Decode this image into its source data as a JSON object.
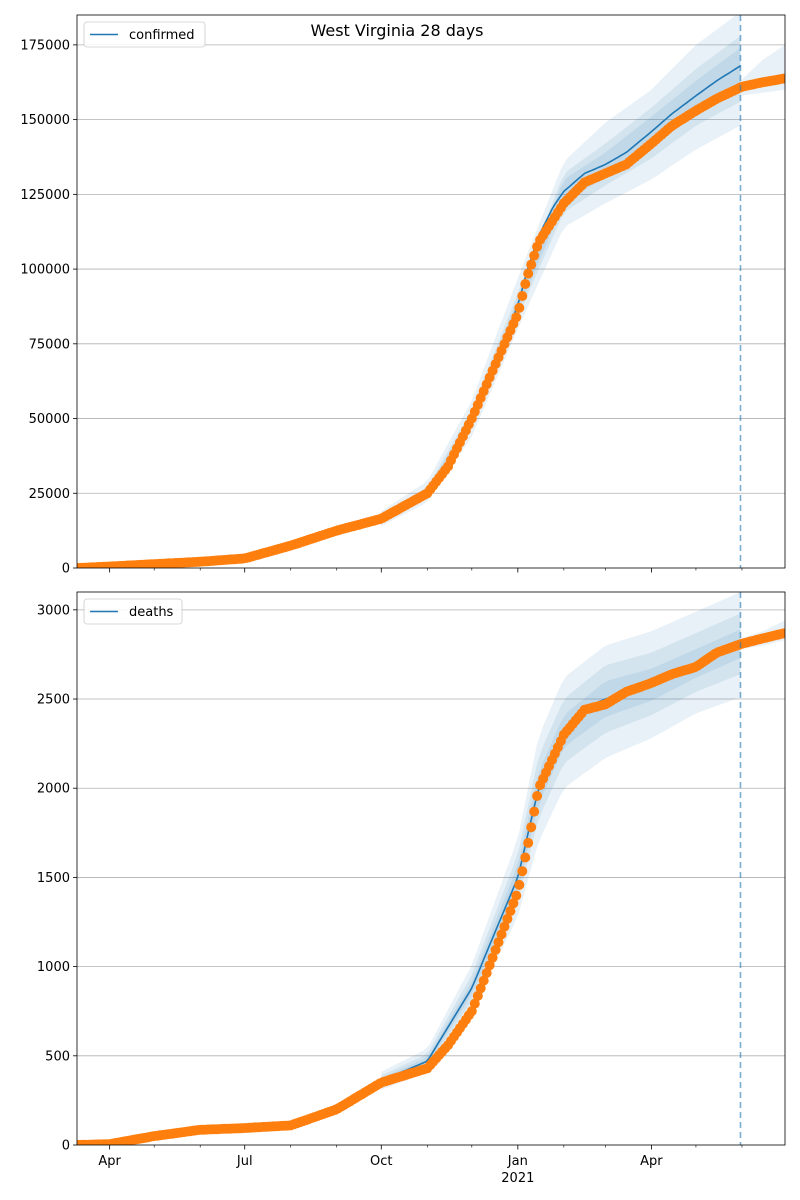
{
  "chart_data": [
    {
      "type": "line",
      "title": "West Virginia 28 days",
      "xlabel": "",
      "ylabel": "",
      "x_range": [
        "2020-03-10",
        "2021-06-30"
      ],
      "x_ticks": [
        {
          "date": "2020-04-01",
          "label": "Apr"
        },
        {
          "date": "2020-07-01",
          "label": "Jul"
        },
        {
          "date": "2020-10-01",
          "label": "Oct"
        },
        {
          "date": "2021-01-01",
          "label": "Jan",
          "sublabel": "2021"
        },
        {
          "date": "2021-04-01",
          "label": "Apr"
        }
      ],
      "ylim": [
        0,
        185000
      ],
      "y_ticks": [
        0,
        25000,
        50000,
        75000,
        100000,
        125000,
        150000,
        175000
      ],
      "y_tick_labels": [
        "0",
        "25000",
        "50000",
        "75000",
        "100000",
        "125000",
        "150000",
        "175000"
      ],
      "grid": "horizontal",
      "legend": {
        "position": "top-left",
        "entries": [
          "confirmed"
        ]
      },
      "forecast_start": "2021-05-31",
      "series": [
        {
          "name": "confirmed",
          "role": "model",
          "color": "#1f77b4",
          "x": [
            "2020-10-01",
            "2020-11-01",
            "2020-11-15",
            "2020-12-01",
            "2020-12-15",
            "2021-01-01",
            "2021-01-07",
            "2021-01-15",
            "2021-01-25",
            "2021-02-01",
            "2021-02-15",
            "2021-03-01",
            "2021-03-15",
            "2021-04-01",
            "2021-04-15",
            "2021-05-01",
            "2021-05-15",
            "2021-05-31"
          ],
          "values": [
            16000,
            25000,
            34000,
            50000,
            66000,
            88000,
            99000,
            111000,
            121000,
            126000,
            132000,
            135000,
            139000,
            146000,
            152000,
            158000,
            163000,
            168000
          ]
        },
        {
          "name": "",
          "role": "observed",
          "color": "#ff7f0e",
          "x": [
            "2020-03-10",
            "2020-04-01",
            "2020-05-01",
            "2020-06-01",
            "2020-07-01",
            "2020-08-01",
            "2020-09-01",
            "2020-10-01",
            "2020-11-01",
            "2020-11-15",
            "2020-12-01",
            "2020-12-15",
            "2021-01-01",
            "2021-01-07",
            "2021-01-15",
            "2021-02-01",
            "2021-02-15",
            "2021-03-01",
            "2021-03-15",
            "2021-04-01",
            "2021-04-15",
            "2021-05-01",
            "2021-05-15",
            "2021-06-01",
            "2021-06-15",
            "2021-06-30"
          ],
          "values": [
            0,
            500,
            1300,
            2100,
            3200,
            7500,
            12500,
            16500,
            25000,
            34000,
            50000,
            66000,
            85000,
            97000,
            109000,
            122000,
            129000,
            132000,
            135000,
            142000,
            148000,
            153000,
            157000,
            161000,
            162500,
            163800
          ]
        }
      ],
      "bands": [
        {
          "x": [
            "2020-10-01",
            "2020-11-01",
            "2020-12-01",
            "2021-01-01",
            "2021-02-01",
            "2021-03-01",
            "2021-04-01",
            "2021-05-01",
            "2021-05-31"
          ],
          "lower": [
            14000,
            22000,
            44000,
            80000,
            114000,
            122000,
            130000,
            140000,
            148000
          ],
          "upper": [
            19000,
            29000,
            56000,
            97000,
            136000,
            149000,
            160000,
            175000,
            186000
          ]
        },
        {
          "x": [
            "2020-10-01",
            "2020-11-01",
            "2020-12-01",
            "2021-01-01",
            "2021-02-01",
            "2021-03-01",
            "2021-04-01",
            "2021-05-01",
            "2021-05-31"
          ],
          "lower": [
            15000,
            23500,
            47000,
            84000,
            119000,
            128000,
            137000,
            148000,
            156000
          ],
          "upper": [
            17500,
            27000,
            53000,
            92000,
            132000,
            142000,
            154000,
            167000,
            178000
          ]
        },
        {
          "x": [
            "2020-10-01",
            "2020-11-01",
            "2020-12-01",
            "2021-01-01",
            "2021-02-01",
            "2021-03-01",
            "2021-04-01",
            "2021-05-01",
            "2021-05-31"
          ],
          "lower": [
            15500,
            24200,
            48500,
            86000,
            122000,
            131000,
            141000,
            152000,
            161000
          ],
          "upper": [
            16800,
            26000,
            51500,
            90000,
            130000,
            139000,
            151000,
            163000,
            174000
          ]
        },
        {
          "x": [
            "2021-05-31",
            "2021-06-15",
            "2021-06-30"
          ],
          "lower": [
            158000,
            159000,
            160000
          ],
          "upper": [
            163000,
            170000,
            175000
          ]
        }
      ]
    },
    {
      "type": "line",
      "title": "",
      "xlabel": "",
      "ylabel": "",
      "x_range": [
        "2020-03-10",
        "2021-06-30"
      ],
      "x_ticks": [
        {
          "date": "2020-04-01",
          "label": "Apr"
        },
        {
          "date": "2020-07-01",
          "label": "Jul"
        },
        {
          "date": "2020-10-01",
          "label": "Oct"
        },
        {
          "date": "2021-01-01",
          "label": "Jan",
          "sublabel": "2021"
        },
        {
          "date": "2021-04-01",
          "label": "Apr"
        }
      ],
      "ylim": [
        0,
        3100
      ],
      "y_ticks": [
        0,
        500,
        1000,
        1500,
        2000,
        2500,
        3000
      ],
      "y_tick_labels": [
        "0",
        "500",
        "1000",
        "1500",
        "2000",
        "2500",
        "3000"
      ],
      "grid": "horizontal",
      "legend": {
        "position": "top-left",
        "entries": [
          "deaths"
        ]
      },
      "forecast_start": "2021-05-31",
      "series": [
        {
          "name": "deaths",
          "role": "model",
          "color": "#1f77b4",
          "x": [
            "2020-10-01",
            "2020-11-01",
            "2020-12-01",
            "2021-01-01",
            "2021-01-15",
            "2021-02-01",
            "2021-02-15",
            "2021-03-01",
            "2021-04-01",
            "2021-05-01",
            "2021-05-31"
          ],
          "values": [
            360,
            470,
            880,
            1500,
            2000,
            2320,
            2450,
            2500,
            2580,
            2700,
            2810
          ]
        },
        {
          "name": "",
          "role": "observed",
          "color": "#ff7f0e",
          "x": [
            "2020-03-10",
            "2020-04-01",
            "2020-05-01",
            "2020-06-01",
            "2020-07-01",
            "2020-08-01",
            "2020-09-01",
            "2020-10-01",
            "2020-11-01",
            "2020-11-15",
            "2020-12-01",
            "2020-12-15",
            "2021-01-01",
            "2021-01-07",
            "2021-01-15",
            "2021-02-01",
            "2021-02-15",
            "2021-03-01",
            "2021-03-15",
            "2021-04-01",
            "2021-04-15",
            "2021-05-01",
            "2021-05-15",
            "2021-06-01",
            "2021-06-15",
            "2021-06-30"
          ],
          "values": [
            0,
            5,
            50,
            85,
            95,
            110,
            200,
            350,
            430,
            560,
            750,
            1050,
            1420,
            1650,
            2000,
            2300,
            2440,
            2470,
            2540,
            2590,
            2640,
            2680,
            2760,
            2810,
            2840,
            2870
          ]
        }
      ],
      "bands": [
        {
          "x": [
            "2020-10-01",
            "2020-11-01",
            "2020-12-01",
            "2021-01-01",
            "2021-01-15",
            "2021-02-01",
            "2021-03-01",
            "2021-04-01",
            "2021-05-01",
            "2021-05-31"
          ],
          "lower": [
            310,
            410,
            760,
            1280,
            1700,
            2000,
            2170,
            2280,
            2420,
            2510
          ],
          "upper": [
            410,
            540,
            1010,
            1720,
            2290,
            2620,
            2800,
            2880,
            2990,
            3100
          ]
        },
        {
          "x": [
            "2020-10-01",
            "2020-11-01",
            "2020-12-01",
            "2021-01-01",
            "2021-01-15",
            "2021-02-01",
            "2021-03-01",
            "2021-04-01",
            "2021-05-01",
            "2021-05-31"
          ],
          "lower": [
            330,
            435,
            810,
            1370,
            1830,
            2140,
            2310,
            2410,
            2540,
            2640
          ],
          "upper": [
            390,
            510,
            955,
            1630,
            2180,
            2500,
            2690,
            2760,
            2870,
            2980
          ]
        },
        {
          "x": [
            "2020-10-01",
            "2020-11-01",
            "2020-12-01",
            "2021-01-01",
            "2021-01-15",
            "2021-02-01",
            "2021-03-01",
            "2021-04-01",
            "2021-05-01",
            "2021-05-31"
          ],
          "lower": [
            345,
            450,
            845,
            1430,
            1910,
            2230,
            2400,
            2490,
            2620,
            2730
          ],
          "upper": [
            375,
            490,
            915,
            1570,
            2090,
            2410,
            2600,
            2670,
            2780,
            2890
          ]
        },
        {
          "x": [
            "2021-05-31",
            "2021-06-15",
            "2021-06-30"
          ],
          "lower": [
            2780,
            2800,
            2830
          ],
          "upper": [
            2840,
            2880,
            2940
          ]
        }
      ]
    }
  ]
}
